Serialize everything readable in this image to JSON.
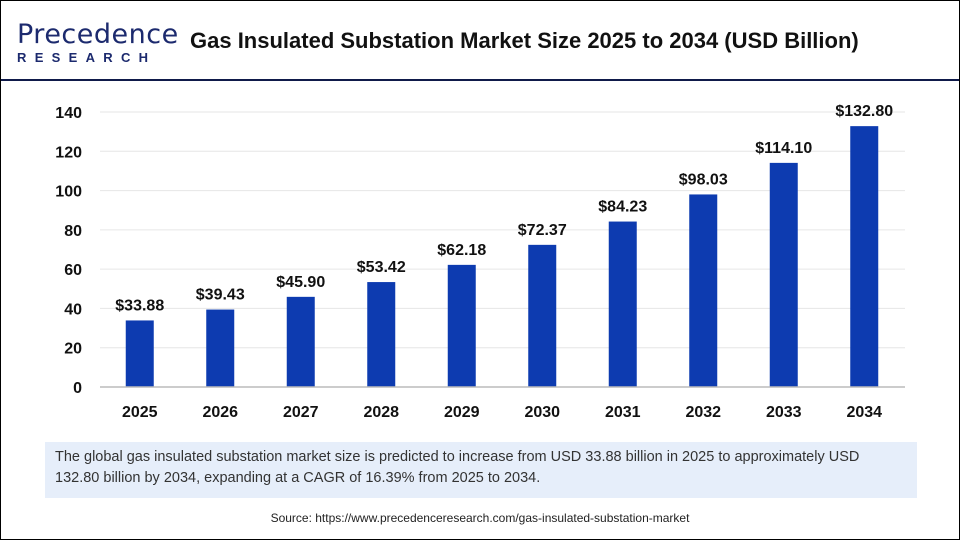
{
  "header": {
    "logo_top": "Precedence",
    "logo_bottom": "RESEARCH",
    "title": "Gas Insulated Substation Market Size 2025 to 2034 (USD Billion)"
  },
  "chart_data": {
    "type": "bar",
    "title": "Gas Insulated Substation Market Size 2025 to 2034 (USD Billion)",
    "categories": [
      "2025",
      "2026",
      "2027",
      "2028",
      "2029",
      "2030",
      "2031",
      "2032",
      "2033",
      "2034"
    ],
    "values": [
      33.88,
      39.43,
      45.9,
      53.42,
      62.18,
      72.37,
      84.23,
      98.03,
      114.1,
      132.8
    ],
    "data_labels": [
      "$33.88",
      "$39.43",
      "$45.90",
      "$53.42",
      "$62.18",
      "$72.37",
      "$84.23",
      "$98.03",
      "$114.10",
      "$132.80"
    ],
    "yticks": [
      0,
      20,
      40,
      60,
      80,
      100,
      120,
      140
    ],
    "ylim": [
      0,
      140
    ],
    "grid": true,
    "bar_color": "#0d3bb0"
  },
  "footer": {
    "note": "The global gas insulated substation market size is predicted to increase from USD 33.88 billion in 2025 to approximately USD 132.80 billion by 2034, expanding at a CAGR of 16.39% from 2025 to 2034.",
    "source": "Source: https://www.precedenceresearch.com/gas-insulated-substation-market"
  }
}
